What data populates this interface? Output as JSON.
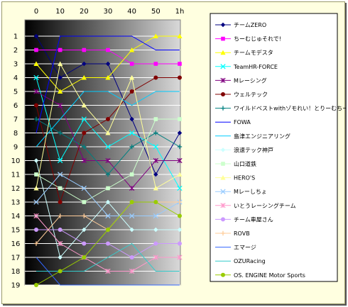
{
  "chart_data": {
    "type": "line",
    "x": [
      "0",
      "10",
      "20",
      "30",
      "40",
      "50",
      "1h"
    ],
    "y_ticks": [
      "1",
      "2",
      "3",
      "4",
      "5",
      "6",
      "7",
      "8",
      "9",
      "10",
      "11",
      "12",
      "13",
      "14",
      "15",
      "16",
      "17",
      "18",
      "19"
    ],
    "ylim": [
      1,
      19
    ],
    "y_inverted": true,
    "legend_position": "right",
    "series": [
      {
        "name": "チームZERO",
        "color": "#000080",
        "marker": "diamond",
        "values": [
          1,
          4,
          3,
          3,
          7,
          11,
          8
        ]
      },
      {
        "name": "ちーむじゅそれで!",
        "color": "#ff00ff",
        "marker": "square",
        "values": [
          2,
          2,
          2,
          2,
          3,
          3,
          3
        ]
      },
      {
        "name": "チームモデスタ",
        "color": "#ffff00",
        "marker": "triangle",
        "values": [
          3,
          5,
          4,
          4,
          2,
          1,
          1
        ]
      },
      {
        "name": "TeamHR-FORCE",
        "color": "#00ffff",
        "marker": "x",
        "values": [
          4,
          10,
          7,
          9,
          8,
          9,
          12
        ]
      },
      {
        "name": "Mレーシング",
        "color": "#800080",
        "marker": "star",
        "values": [
          5,
          6,
          10,
          10,
          12,
          10,
          10
        ]
      },
      {
        "name": "ウェルテック",
        "color": "#800000",
        "marker": "circle",
        "values": [
          6,
          13,
          8,
          7,
          5,
          4,
          4
        ]
      },
      {
        "name": "ワイルドベストwithゾモれい！とりーむちーむ！",
        "color": "#008080",
        "marker": "plus",
        "values": [
          7,
          8,
          9,
          11,
          9,
          8,
          9
        ]
      },
      {
        "name": "FOWA",
        "color": "#0000ff",
        "marker": "none",
        "values": [
          8,
          1,
          1,
          1,
          1,
          2,
          2
        ]
      },
      {
        "name": "島津エンジニアリング",
        "color": "#00ccff",
        "marker": "none",
        "values": [
          9,
          7,
          5,
          5,
          6,
          5,
          5
        ]
      },
      {
        "name": "浪速テック神戸",
        "color": "#ccffff",
        "marker": "diamond",
        "values": [
          10,
          17,
          15,
          13,
          15,
          15,
          15
        ]
      },
      {
        "name": "山口道鉄",
        "color": "#ccffcc",
        "marker": "square",
        "values": [
          11,
          12,
          13,
          12,
          11,
          7,
          7
        ]
      },
      {
        "name": "HERO'S",
        "color": "#ffff99",
        "marker": "triangle",
        "values": [
          12,
          3,
          6,
          8,
          4,
          12,
          11
        ]
      },
      {
        "name": "Mレーしちょ",
        "color": "#99ccff",
        "marker": "x",
        "values": [
          13,
          11,
          12,
          14,
          14,
          14,
          13
        ]
      },
      {
        "name": "いとうレーシングチーム",
        "color": "#ff99cc",
        "marker": "star",
        "values": [
          14,
          16,
          17,
          18,
          18,
          17,
          17
        ]
      },
      {
        "name": "チーム車屋さん",
        "color": "#cc99ff",
        "marker": "circle",
        "values": [
          15,
          15,
          16,
          16,
          17,
          16,
          16
        ]
      },
      {
        "name": "ROVB",
        "color": "#ffcc99",
        "marker": "plus",
        "values": [
          16,
          14,
          14,
          15,
          13,
          13,
          13
        ]
      },
      {
        "name": "エマージ",
        "color": "#3366ff",
        "marker": "none",
        "values": [
          17,
          19,
          19,
          19,
          19,
          19,
          19
        ]
      },
      {
        "name": "OZURacing",
        "color": "#33cccc",
        "marker": "none",
        "values": [
          18,
          18,
          18,
          17,
          16,
          18,
          18
        ]
      },
      {
        "name": "OS. ENGINE Motor Sports",
        "color": "#99cc00",
        "marker": "circle",
        "values": [
          19,
          18,
          17,
          15,
          13,
          13,
          14
        ]
      }
    ]
  }
}
